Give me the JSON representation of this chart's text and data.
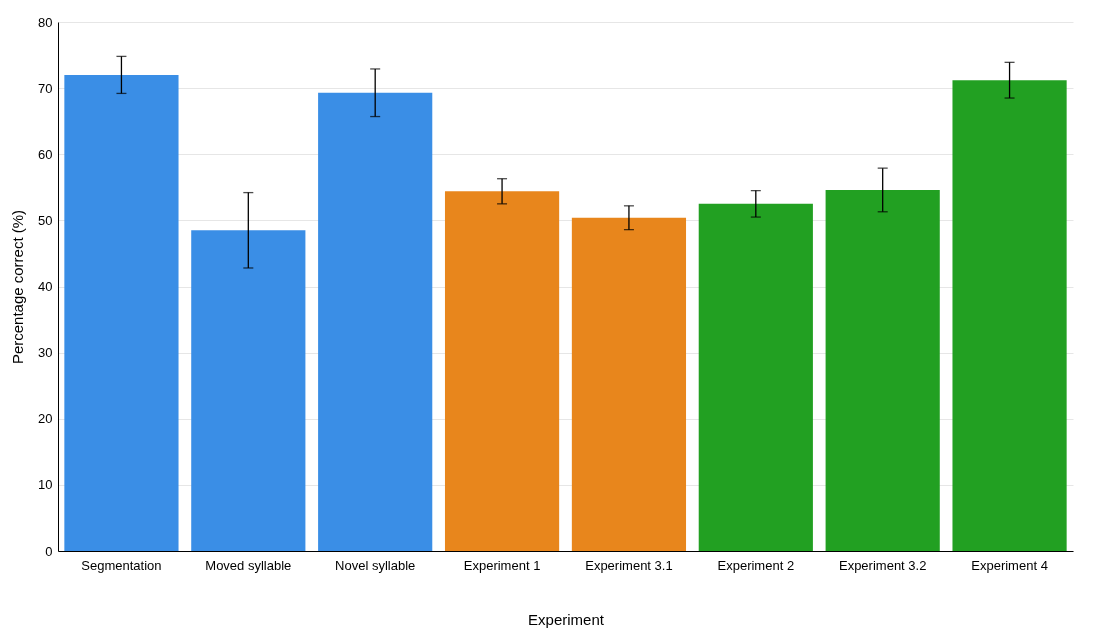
{
  "chart_data": {
    "type": "bar",
    "xlabel": "Experiment",
    "ylabel": "Percentage correct (%)",
    "categories": [
      "Segmentation",
      "Moved syllable",
      "Novel syllable",
      "Experiment 1",
      "Experiment 3.1",
      "Experiment 2",
      "Experiment 3.2",
      "Experiment 4"
    ],
    "values": [
      72.0,
      48.5,
      69.3,
      54.4,
      50.4,
      52.5,
      54.6,
      71.2
    ],
    "errors": [
      2.8,
      5.7,
      3.6,
      1.9,
      1.8,
      2.0,
      3.3,
      2.7
    ],
    "colors": [
      "#3a8ee6",
      "#3a8ee6",
      "#3a8ee6",
      "#e8861c",
      "#e8861c",
      "#22a022",
      "#22a022",
      "#22a022"
    ],
    "ylim": [
      0,
      80
    ],
    "yticks": [
      0,
      10,
      20,
      30,
      40,
      50,
      60,
      70,
      80
    ],
    "grid": "y"
  }
}
